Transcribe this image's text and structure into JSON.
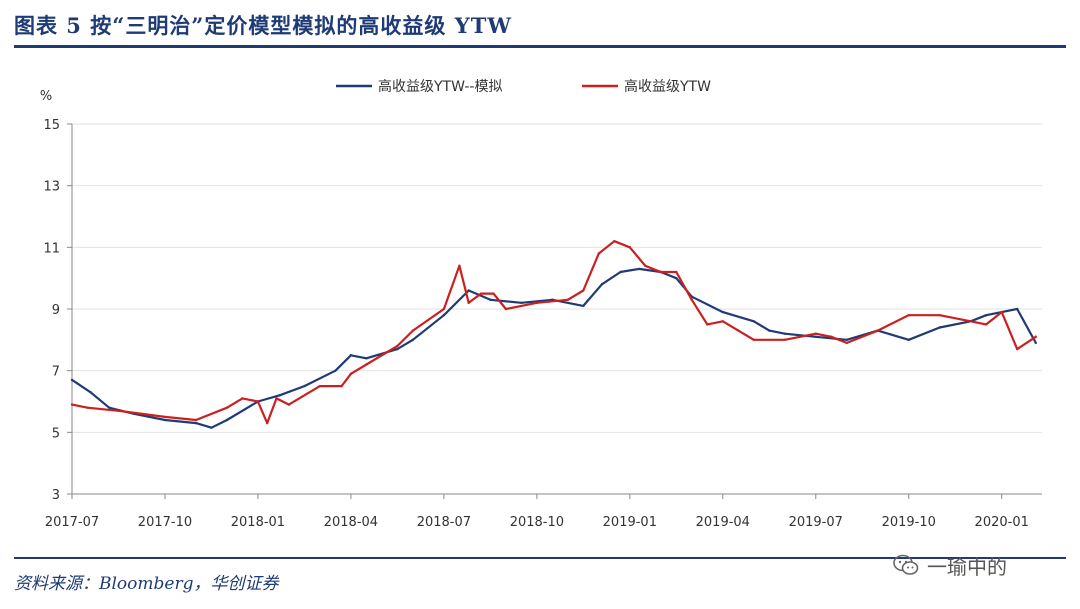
{
  "header": {
    "title": "图表 5   按“三明治”定价模型模拟的高收益级 YTW"
  },
  "footer": {
    "source": "资料来源：Bloomberg，华创证券"
  },
  "watermark": {
    "text": "一瑜中的",
    "icon": "wechat-icon"
  },
  "colors": {
    "model": "#1f3b76",
    "actual": "#cc1f1f",
    "accent": "#1f3b76"
  },
  "chart_data": {
    "type": "line",
    "title": "",
    "ylabel": "%",
    "xlabel": "",
    "ylim": [
      3,
      15
    ],
    "yticks": [
      3,
      5,
      7,
      9,
      11,
      13,
      15
    ],
    "xlim": [
      0,
      31.3
    ],
    "x_tick_positions": [
      0,
      3,
      6,
      9,
      12,
      15,
      18,
      21,
      24,
      27,
      30
    ],
    "x_tick_labels": [
      "2017-07",
      "2017-10",
      "2018-01",
      "2018-04",
      "2018-07",
      "2018-10",
      "2019-01",
      "2019-04",
      "2019-07",
      "2019-10",
      "2020-01"
    ],
    "legend_position": "top-center",
    "series": [
      {
        "name": "高收益级YTW--模拟",
        "color": "#1f3b76",
        "x": [
          0,
          0.6,
          1.2,
          2,
          3,
          4,
          4.5,
          5,
          6,
          6.7,
          7.5,
          8.5,
          9,
          9.5,
          10.5,
          11,
          12,
          12.8,
          13.5,
          14.5,
          15.5,
          16.5,
          17.1,
          17.7,
          18.3,
          19,
          19.5,
          20,
          21,
          22,
          22.5,
          23,
          24,
          25,
          26,
          27,
          28,
          29,
          29.5,
          30.5,
          31.1
        ],
        "y": [
          6.7,
          6.3,
          5.8,
          5.6,
          5.4,
          5.3,
          5.15,
          5.4,
          6.0,
          6.2,
          6.5,
          7.0,
          7.5,
          7.4,
          7.7,
          8.0,
          8.8,
          9.6,
          9.3,
          9.2,
          9.3,
          9.1,
          9.8,
          10.2,
          10.3,
          10.2,
          10.0,
          9.4,
          8.9,
          8.6,
          8.3,
          8.2,
          8.1,
          8.0,
          8.3,
          8.0,
          8.4,
          8.6,
          8.8,
          9.0,
          7.9
        ]
      },
      {
        "name": "高收益级YTW",
        "color": "#cc1f1f",
        "x": [
          0,
          0.5,
          1.5,
          3,
          4,
          5,
          5.5,
          6,
          6.3,
          6.6,
          7,
          8,
          8.7,
          9,
          9.5,
          10.5,
          11,
          12,
          12.5,
          12.8,
          13.2,
          13.6,
          14,
          15,
          16,
          16.5,
          17,
          17.5,
          18,
          18.5,
          19,
          19.5,
          20,
          20.5,
          21,
          21.5,
          22,
          23,
          24,
          24.5,
          25,
          26,
          27,
          28,
          29,
          29.5,
          30,
          30.5,
          31.1
        ],
        "y": [
          5.9,
          5.8,
          5.7,
          5.5,
          5.4,
          5.8,
          6.1,
          6.0,
          5.3,
          6.1,
          5.9,
          6.5,
          6.5,
          6.9,
          7.2,
          7.8,
          8.3,
          9.0,
          10.4,
          9.2,
          9.5,
          9.5,
          9.0,
          9.2,
          9.3,
          9.6,
          10.8,
          11.2,
          11.0,
          10.4,
          10.2,
          10.2,
          9.3,
          8.5,
          8.6,
          8.3,
          8.0,
          8.0,
          8.2,
          8.1,
          7.9,
          8.3,
          8.8,
          8.8,
          8.6,
          8.5,
          8.9,
          7.7,
          8.1
        ]
      }
    ]
  }
}
